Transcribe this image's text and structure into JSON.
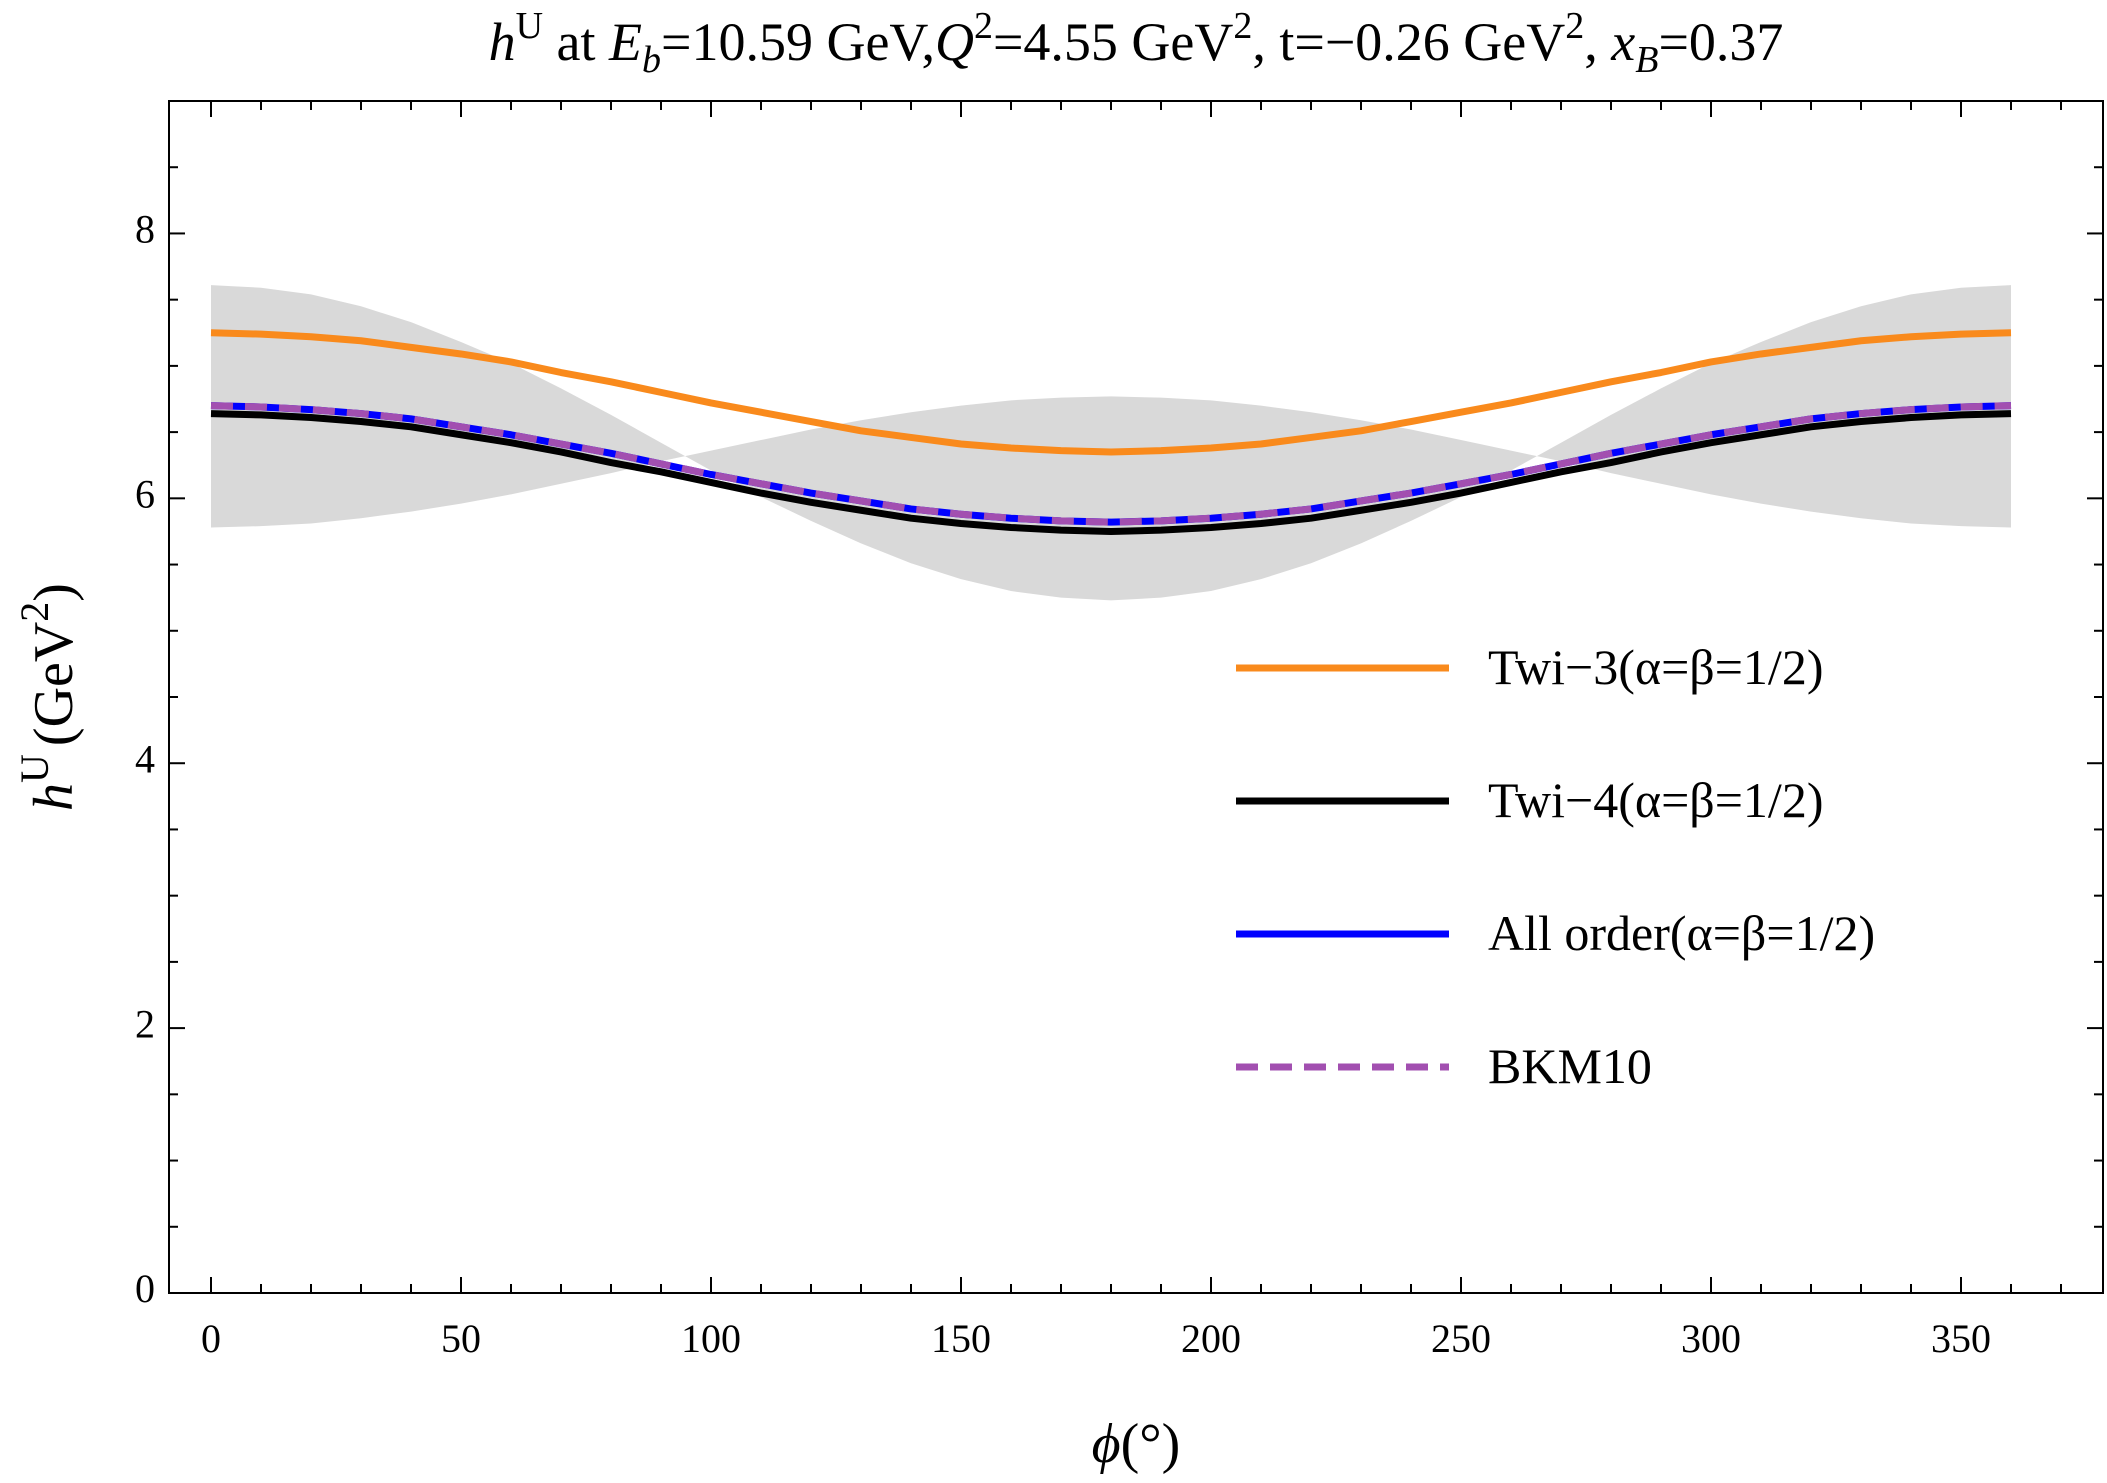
{
  "chart_data": {
    "type": "line",
    "title": [
      "h",
      "U",
      " at ",
      "E",
      "b",
      "=10.59 GeV,",
      "Q",
      "2",
      "=4.55 GeV",
      "2",
      ", t=−0.26 GeV",
      "2",
      ", ",
      "x",
      "B",
      "=0.37"
    ],
    "x_label": [
      "ϕ",
      "(°)"
    ],
    "y_label": [
      "h",
      "U",
      "(GeV",
      "2",
      ")"
    ],
    "xlim": [
      -8.4,
      378.4
    ],
    "ylim": [
      0,
      9
    ],
    "xticks": [
      0,
      50,
      100,
      150,
      200,
      250,
      300,
      350
    ],
    "yticks": [
      0,
      2,
      4,
      6,
      8
    ],
    "xminorticks": [
      10,
      20,
      30,
      40,
      60,
      70,
      80,
      90,
      110,
      120,
      130,
      140,
      160,
      170,
      180,
      190,
      210,
      220,
      230,
      240,
      260,
      270,
      280,
      290,
      310,
      320,
      330,
      340,
      360,
      370
    ],
    "yminorticks": [
      0.5,
      1,
      1.5,
      2.5,
      3,
      3.5,
      4.5,
      5,
      5.5,
      6.5,
      7,
      7.5,
      8.5
    ],
    "legend": "right",
    "x": [
      0,
      10,
      20,
      30,
      40,
      50,
      60,
      70,
      80,
      90,
      100,
      110,
      120,
      130,
      140,
      150,
      160,
      170,
      180,
      190,
      200,
      210,
      220,
      230,
      240,
      250,
      260,
      270,
      280,
      290,
      300,
      310,
      320,
      330,
      340,
      350,
      360
    ],
    "band": {
      "color": "#d9d9d9",
      "values_a": [
        7.61,
        7.59,
        7.54,
        7.45,
        7.33,
        7.18,
        7.02,
        6.83,
        6.63,
        6.42,
        6.21,
        6.01,
        5.83,
        5.66,
        5.51,
        5.39,
        5.3,
        5.25,
        5.23,
        5.25,
        5.3,
        5.39,
        5.51,
        5.66,
        5.83,
        6.01,
        6.21,
        6.42,
        6.63,
        6.83,
        7.02,
        7.18,
        7.33,
        7.45,
        7.54,
        7.59,
        7.61
      ],
      "values_b": [
        5.78,
        5.79,
        5.81,
        5.85,
        5.9,
        5.96,
        6.03,
        6.11,
        6.19,
        6.28,
        6.36,
        6.44,
        6.52,
        6.59,
        6.65,
        6.7,
        6.74,
        6.76,
        6.77,
        6.76,
        6.74,
        6.7,
        6.65,
        6.59,
        6.52,
        6.44,
        6.36,
        6.28,
        6.19,
        6.11,
        6.03,
        5.96,
        5.9,
        5.85,
        5.81,
        5.79,
        5.78
      ]
    },
    "series": [
      {
        "name": "Twi−3(α=β=1/2)",
        "color": "#f98a1c",
        "dash": false,
        "values": [
          7.25,
          7.24,
          7.22,
          7.19,
          7.14,
          7.09,
          7.03,
          6.95,
          6.88,
          6.8,
          6.72,
          6.65,
          6.58,
          6.51,
          6.46,
          6.41,
          6.38,
          6.36,
          6.35,
          6.36,
          6.38,
          6.41,
          6.46,
          6.51,
          6.58,
          6.65,
          6.72,
          6.8,
          6.88,
          6.95,
          7.03,
          7.09,
          7.14,
          7.19,
          7.22,
          7.24,
          7.25
        ]
      },
      {
        "name": "Twi−4(α=β=1/2)",
        "color": "#000000",
        "dash": false,
        "values": [
          6.64,
          6.63,
          6.61,
          6.58,
          6.54,
          6.48,
          6.42,
          6.35,
          6.27,
          6.2,
          6.12,
          6.04,
          5.97,
          5.91,
          5.85,
          5.81,
          5.78,
          5.76,
          5.75,
          5.76,
          5.78,
          5.81,
          5.85,
          5.91,
          5.97,
          6.04,
          6.12,
          6.2,
          6.27,
          6.35,
          6.42,
          6.48,
          6.54,
          6.58,
          6.61,
          6.63,
          6.64
        ]
      },
      {
        "name": "All order(α=β=1/2)",
        "color": "#0000ff",
        "dash": false,
        "values": [
          6.7,
          6.69,
          6.67,
          6.64,
          6.6,
          6.54,
          6.48,
          6.41,
          6.34,
          6.26,
          6.18,
          6.11,
          6.04,
          5.98,
          5.92,
          5.88,
          5.85,
          5.83,
          5.82,
          5.83,
          5.85,
          5.88,
          5.92,
          5.98,
          6.04,
          6.11,
          6.18,
          6.26,
          6.34,
          6.41,
          6.48,
          6.54,
          6.6,
          6.64,
          6.67,
          6.69,
          6.7
        ]
      },
      {
        "name": "BKM10",
        "color": "#a24fb0",
        "dash": true,
        "values": [
          6.7,
          6.69,
          6.67,
          6.64,
          6.6,
          6.54,
          6.48,
          6.41,
          6.34,
          6.26,
          6.18,
          6.11,
          6.04,
          5.98,
          5.92,
          5.88,
          5.85,
          5.83,
          5.82,
          5.83,
          5.85,
          5.88,
          5.92,
          5.98,
          6.04,
          6.11,
          6.18,
          6.26,
          6.34,
          6.41,
          6.48,
          6.54,
          6.6,
          6.64,
          6.67,
          6.69,
          6.7
        ]
      }
    ]
  }
}
